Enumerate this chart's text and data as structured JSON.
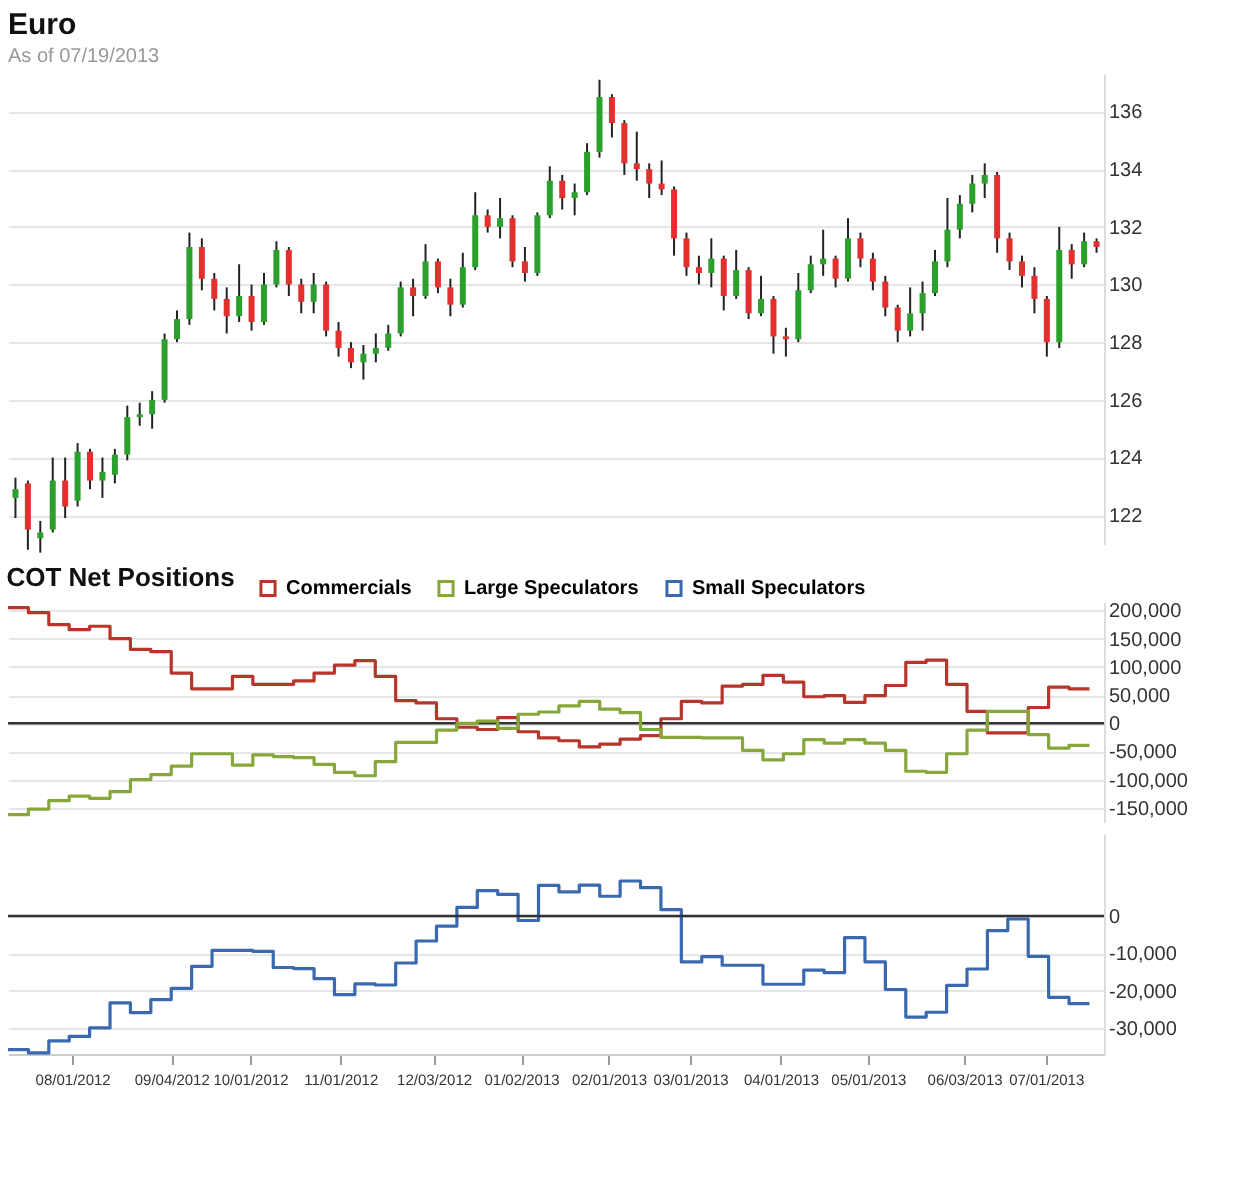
{
  "chart_data": [
    {
      "type": "candlestick",
      "title": "Euro",
      "subtitle": "As of 07/19/2013",
      "categories": [
        null,
        null,
        null,
        null,
        null,
        null,
        null,
        null,
        null,
        null,
        null,
        null,
        null,
        null,
        null,
        null,
        null,
        null,
        null,
        null,
        null,
        null,
        null,
        null,
        null,
        null,
        null,
        null,
        null,
        null,
        null,
        null,
        null,
        null,
        null,
        null,
        null,
        null,
        null,
        null,
        null,
        null,
        null,
        null,
        null,
        null,
        null,
        null,
        null,
        null,
        null,
        null,
        null,
        null,
        null,
        null,
        null,
        null,
        null,
        null,
        null,
        null,
        null,
        null,
        null,
        null,
        null,
        null,
        null,
        null,
        null,
        null,
        null,
        null,
        null,
        null,
        null,
        null,
        null,
        null,
        null,
        null,
        null,
        null,
        null,
        null,
        null,
        null
      ],
      "ohlc": [
        [
          122.6,
          123.3,
          121.9,
          122.9
        ],
        [
          123.1,
          123.2,
          120.8,
          121.5
        ],
        [
          121.2,
          121.8,
          120.7,
          121.4
        ],
        [
          121.5,
          124.0,
          121.4,
          123.2
        ],
        [
          123.2,
          124.0,
          121.9,
          122.3
        ],
        [
          122.5,
          124.5,
          122.3,
          124.2
        ],
        [
          124.2,
          124.3,
          122.9,
          123.2
        ],
        [
          123.2,
          124.0,
          122.6,
          123.5
        ],
        [
          123.4,
          124.3,
          123.1,
          124.1
        ],
        [
          124.1,
          125.8,
          123.9,
          125.4
        ],
        [
          125.4,
          125.9,
          125.1,
          125.5
        ],
        [
          125.5,
          126.3,
          125.0,
          126.0
        ],
        [
          126.0,
          128.3,
          125.9,
          128.1
        ],
        [
          128.1,
          129.1,
          128.0,
          128.8
        ],
        [
          128.8,
          131.8,
          128.6,
          131.3
        ],
        [
          131.3,
          131.6,
          129.8,
          130.2
        ],
        [
          130.2,
          130.4,
          129.1,
          129.5
        ],
        [
          129.5,
          129.9,
          128.3,
          128.9
        ],
        [
          128.9,
          130.7,
          128.7,
          129.6
        ],
        [
          129.6,
          130.0,
          128.4,
          128.7
        ],
        [
          128.7,
          130.4,
          128.6,
          130.0
        ],
        [
          130.0,
          131.5,
          129.9,
          131.2
        ],
        [
          131.2,
          131.3,
          129.6,
          130.0
        ],
        [
          130.0,
          130.2,
          129.0,
          129.4
        ],
        [
          129.4,
          130.4,
          129.0,
          130.0
        ],
        [
          130.0,
          130.1,
          128.2,
          128.4
        ],
        [
          128.4,
          128.7,
          127.5,
          127.8
        ],
        [
          127.8,
          128.0,
          127.1,
          127.3
        ],
        [
          127.3,
          127.9,
          126.7,
          127.6
        ],
        [
          127.6,
          128.3,
          127.3,
          127.8
        ],
        [
          127.8,
          128.6,
          127.7,
          128.3
        ],
        [
          128.3,
          130.1,
          128.2,
          129.9
        ],
        [
          129.9,
          130.2,
          128.9,
          129.6
        ],
        [
          129.6,
          131.4,
          129.5,
          130.8
        ],
        [
          130.8,
          130.9,
          129.7,
          129.9
        ],
        [
          129.9,
          130.2,
          128.9,
          129.3
        ],
        [
          129.3,
          131.1,
          129.2,
          130.6
        ],
        [
          130.6,
          133.2,
          130.5,
          132.4
        ],
        [
          132.4,
          132.6,
          131.8,
          132.0
        ],
        [
          132.0,
          133.0,
          131.6,
          132.3
        ],
        [
          132.3,
          132.4,
          130.6,
          130.8
        ],
        [
          130.8,
          131.3,
          130.1,
          130.4
        ],
        [
          130.4,
          132.5,
          130.3,
          132.4
        ],
        [
          132.4,
          134.1,
          132.3,
          133.6
        ],
        [
          133.6,
          133.8,
          132.6,
          133.0
        ],
        [
          133.0,
          133.5,
          132.4,
          133.2
        ],
        [
          133.2,
          134.9,
          133.1,
          134.6
        ],
        [
          134.6,
          137.1,
          134.4,
          136.5
        ],
        [
          136.5,
          136.6,
          135.1,
          135.6
        ],
        [
          135.6,
          135.7,
          133.8,
          134.2
        ],
        [
          134.2,
          135.3,
          133.6,
          134.0
        ],
        [
          134.0,
          134.2,
          133.0,
          133.5
        ],
        [
          133.5,
          134.3,
          133.1,
          133.3
        ],
        [
          133.3,
          133.4,
          131.0,
          131.6
        ],
        [
          131.6,
          131.8,
          130.3,
          130.6
        ],
        [
          130.6,
          131.0,
          130.0,
          130.4
        ],
        [
          130.4,
          131.6,
          129.9,
          130.9
        ],
        [
          130.9,
          131.0,
          129.1,
          129.6
        ],
        [
          129.6,
          131.2,
          129.5,
          130.5
        ],
        [
          130.5,
          130.6,
          128.8,
          129.0
        ],
        [
          129.0,
          130.3,
          128.9,
          129.5
        ],
        [
          129.5,
          129.6,
          127.6,
          128.2
        ],
        [
          128.2,
          128.5,
          127.5,
          128.1
        ],
        [
          128.1,
          130.4,
          128.0,
          129.8
        ],
        [
          129.8,
          131.0,
          129.7,
          130.7
        ],
        [
          130.7,
          131.9,
          130.3,
          130.9
        ],
        [
          130.9,
          131.0,
          129.9,
          130.2
        ],
        [
          130.2,
          132.3,
          130.1,
          131.6
        ],
        [
          131.6,
          131.8,
          130.6,
          130.9
        ],
        [
          130.9,
          131.1,
          129.8,
          130.1
        ],
        [
          130.1,
          130.3,
          128.9,
          129.2
        ],
        [
          129.2,
          129.3,
          128.0,
          128.4
        ],
        [
          128.4,
          129.9,
          128.2,
          129.0
        ],
        [
          129.0,
          130.1,
          128.4,
          129.7
        ],
        [
          129.7,
          131.2,
          129.6,
          130.8
        ],
        [
          130.8,
          133.0,
          130.6,
          131.9
        ],
        [
          131.9,
          133.1,
          131.6,
          132.8
        ],
        [
          132.8,
          133.8,
          132.5,
          133.5
        ],
        [
          133.5,
          134.2,
          133.0,
          133.8
        ],
        [
          133.8,
          133.9,
          131.1,
          131.6
        ],
        [
          131.6,
          131.8,
          130.5,
          130.8
        ],
        [
          130.8,
          131.0,
          129.9,
          130.3
        ],
        [
          130.3,
          130.6,
          129.0,
          129.5
        ],
        [
          129.5,
          129.6,
          127.5,
          128.0
        ],
        [
          128.0,
          132.0,
          127.8,
          131.2
        ],
        [
          131.2,
          131.4,
          130.2,
          130.7
        ],
        [
          130.7,
          131.8,
          130.6,
          131.5
        ],
        [
          131.5,
          131.6,
          131.1,
          131.3
        ]
      ],
      "colors": [
        "#2ca02c",
        "#e3302f",
        "#2ca02c",
        "#2ca02c",
        "#e3302f",
        "#2ca02c",
        "#e3302f",
        "#2ca02c",
        "#2ca02c",
        "#2ca02c",
        "#2ca02c",
        "#2ca02c",
        "#2ca02c",
        "#2ca02c",
        "#2ca02c",
        "#e3302f",
        "#e3302f",
        "#e3302f",
        "#2ca02c",
        "#e3302f",
        "#2ca02c",
        "#2ca02c",
        "#e3302f",
        "#e3302f",
        "#2ca02c",
        "#e3302f",
        "#e3302f",
        "#e3302f",
        "#2ca02c",
        "#2ca02c",
        "#2ca02c",
        "#2ca02c",
        "#e3302f",
        "#2ca02c",
        "#e3302f",
        "#e3302f",
        "#2ca02c",
        "#2ca02c",
        "#e3302f",
        "#2ca02c",
        "#e3302f",
        "#e3302f",
        "#2ca02c",
        "#2ca02c",
        "#e3302f",
        "#2ca02c",
        "#2ca02c",
        "#2ca02c",
        "#e3302f",
        "#e3302f",
        "#e3302f",
        "#e3302f",
        "#e3302f",
        "#e3302f",
        "#e3302f",
        "#e3302f",
        "#2ca02c",
        "#e3302f",
        "#2ca02c",
        "#e3302f",
        "#2ca02c",
        "#e3302f",
        "#e3302f",
        "#2ca02c",
        "#2ca02c",
        "#2ca02c",
        "#e3302f",
        "#2ca02c",
        "#e3302f",
        "#e3302f",
        "#e3302f",
        "#e3302f",
        "#2ca02c",
        "#2ca02c",
        "#2ca02c",
        "#2ca02c",
        "#2ca02c",
        "#2ca02c",
        "#2ca02c",
        "#e3302f",
        "#e3302f",
        "#e3302f",
        "#e3302f",
        "#e3302f",
        "#2ca02c",
        "#e3302f",
        "#2ca02c",
        "#e3302f"
      ],
      "ylim": [
        121,
        137.3
      ],
      "yticks": [
        122,
        124,
        126,
        128,
        130,
        132,
        134,
        136
      ],
      "grid": "y",
      "tick_labels": "y"
    },
    {
      "type": "step",
      "title": "COT Net Positions",
      "x": [
        "2012-07-10",
        "2012-07-17",
        "2012-07-24",
        "2012-07-31",
        "2012-08-07",
        "2012-08-14",
        "2012-08-21",
        "2012-08-28",
        "2012-09-04",
        "2012-09-11",
        "2012-09-18",
        "2012-09-25",
        "2012-10-02",
        "2012-10-09",
        "2012-10-16",
        "2012-10-23",
        "2012-10-30",
        "2012-11-06",
        "2012-11-13",
        "2012-11-20",
        "2012-11-27",
        "2012-12-04",
        "2012-12-11",
        "2012-12-18",
        "2012-12-25",
        "2013-01-01",
        "2013-01-08",
        "2013-01-15",
        "2013-01-22",
        "2013-01-29",
        "2013-02-05",
        "2013-02-12",
        "2013-02-19",
        "2013-02-26",
        "2013-03-05",
        "2013-03-12",
        "2013-03-19",
        "2013-03-26",
        "2013-04-02",
        "2013-04-09",
        "2013-04-16",
        "2013-04-23",
        "2013-04-30",
        "2013-05-07",
        "2013-05-14",
        "2013-05-21",
        "2013-05-28",
        "2013-06-04",
        "2013-06-11",
        "2013-06-18",
        "2013-06-25",
        "2013-07-02",
        "2013-07-09",
        "2013-07-16"
      ],
      "series": [
        {
          "name": "Commercials",
          "color": "#b8352b",
          "values": [
            205000,
            196000,
            175000,
            166000,
            172000,
            150000,
            131000,
            127000,
            89000,
            61000,
            61000,
            83000,
            69000,
            69000,
            75000,
            89000,
            103000,
            111000,
            83000,
            40000,
            36000,
            8000,
            -7000,
            -11000,
            10000,
            -15000,
            -26000,
            -31000,
            -42000,
            -37000,
            -28000,
            -22000,
            8000,
            39000,
            36000,
            66000,
            69000,
            85000,
            73000,
            47000,
            49000,
            37000,
            49000,
            67000,
            108000,
            112000,
            69000,
            21000,
            -17000,
            -17000,
            28000,
            64000,
            61000,
            61000
          ]
        },
        {
          "name": "Large Speculators",
          "color": "#86a83a",
          "values": [
            -162000,
            -152000,
            -137000,
            -129000,
            -133000,
            -121000,
            -100000,
            -91000,
            -76000,
            -54000,
            -54000,
            -74000,
            -56000,
            -59000,
            -61000,
            -73000,
            -87000,
            -93000,
            -68000,
            -34000,
            -34000,
            -12000,
            0,
            4000,
            -9000,
            16000,
            20000,
            31000,
            39000,
            25000,
            19000,
            -11000,
            -25000,
            -25000,
            -26000,
            -26000,
            -48000,
            -65000,
            -54000,
            -29000,
            -35000,
            -29000,
            -35000,
            -48000,
            -85000,
            -87000,
            -54000,
            -12000,
            21000,
            21000,
            -20000,
            -44000,
            -39000,
            -39000
          ]
        }
      ],
      "xlim": [
        "2012-07-10",
        "2013-07-21"
      ],
      "ylim": [
        -175000,
        215000
      ],
      "yticks": [
        {
          "value": 200000,
          "label": "200,000"
        },
        {
          "value": 150000,
          "label": "150,000"
        },
        {
          "value": 100000,
          "label": "100,000"
        },
        {
          "value": 50000,
          "label": "50,000"
        },
        0,
        {
          "value": -50000,
          "label": "-50,000"
        },
        {
          "value": -100000,
          "label": "-100,000"
        },
        {
          "value": -150000,
          "label": "-150,000"
        }
      ],
      "grid": "y",
      "legend": "top",
      "tick_labels": "y",
      "ref_lines": [
        {
          "axis": "y",
          "value": 0,
          "color": "#333333"
        }
      ]
    },
    {
      "type": "step",
      "x": [
        "2012-07-10",
        "2012-07-17",
        "2012-07-24",
        "2012-07-31",
        "2012-08-07",
        "2012-08-14",
        "2012-08-21",
        "2012-08-28",
        "2012-09-04",
        "2012-09-11",
        "2012-09-18",
        "2012-09-25",
        "2012-10-02",
        "2012-10-09",
        "2012-10-16",
        "2012-10-23",
        "2012-10-30",
        "2012-11-06",
        "2012-11-13",
        "2012-11-20",
        "2012-11-27",
        "2012-12-04",
        "2012-12-11",
        "2012-12-18",
        "2012-12-25",
        "2013-01-01",
        "2013-01-08",
        "2013-01-15",
        "2013-01-22",
        "2013-01-29",
        "2013-02-05",
        "2013-02-12",
        "2013-02-19",
        "2013-02-26",
        "2013-03-05",
        "2013-03-12",
        "2013-03-19",
        "2013-03-26",
        "2013-04-02",
        "2013-04-09",
        "2013-04-16",
        "2013-04-23",
        "2013-04-30",
        "2013-05-07",
        "2013-05-14",
        "2013-05-21",
        "2013-05-28",
        "2013-06-04",
        "2013-06-11",
        "2013-06-18",
        "2013-06-25",
        "2013-07-02",
        "2013-07-09",
        "2013-07-16"
      ],
      "series": [
        {
          "name": "Small Speculators",
          "color": "#3a69b0",
          "values": [
            -35800,
            -36700,
            -33500,
            -32300,
            -30000,
            -23300,
            -25900,
            -22400,
            -19400,
            -13500,
            -9200,
            -9200,
            -9500,
            -13800,
            -14100,
            -16800,
            -21100,
            -18200,
            -18500,
            -12600,
            -6700,
            -2700,
            2300,
            6800,
            5800,
            -1200,
            8200,
            6500,
            8300,
            5300,
            9400,
            7600,
            1700,
            -12300,
            -10900,
            -13200,
            -13200,
            -18300,
            -18300,
            -14500,
            -15200,
            -5800,
            -12300,
            -19700,
            -27100,
            -25800,
            -18600,
            -14200,
            -3900,
            -800,
            -10800,
            -21800,
            -23500,
            -23500
          ]
        }
      ],
      "xlim": [
        "2012-07-10",
        "2013-07-21"
      ],
      "ylim": [
        -37000,
        22000
      ],
      "yticks": [
        0,
        {
          "value": -10000,
          "label": "-10,000"
        },
        {
          "value": -20000,
          "label": "-20,000"
        },
        {
          "value": -30000,
          "label": "-30,000"
        }
      ],
      "xticks": [
        {
          "value": "2012-08-01",
          "label": "08/01/2012"
        },
        {
          "value": "2012-09-04",
          "label": "09/04/2012"
        },
        {
          "value": "2012-10-01",
          "label": "10/01/2012"
        },
        {
          "value": "2012-11-01",
          "label": "11/01/2012"
        },
        {
          "value": "2012-12-03",
          "label": "12/03/2012"
        },
        {
          "value": "2013-01-02",
          "label": "01/02/2013"
        },
        {
          "value": "2013-02-01",
          "label": "02/01/2013"
        },
        {
          "value": "2013-03-01",
          "label": "03/01/2013"
        },
        {
          "value": "2013-04-01",
          "label": "04/01/2013"
        },
        {
          "value": "2013-05-01",
          "label": "05/01/2013"
        },
        {
          "value": "2013-06-03",
          "label": "06/03/2013"
        },
        {
          "value": "2013-07-01",
          "label": "07/01/2013"
        }
      ],
      "grid": "y",
      "ref_lines": [
        {
          "axis": "y",
          "value": 0,
          "color": "#333333"
        }
      ]
    }
  ]
}
